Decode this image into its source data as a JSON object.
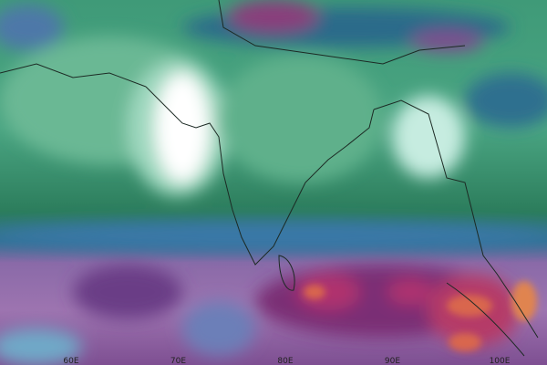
{
  "map": {
    "longitude_labels": [
      "60E",
      "70E",
      "80E",
      "90E",
      "100E"
    ]
  }
}
